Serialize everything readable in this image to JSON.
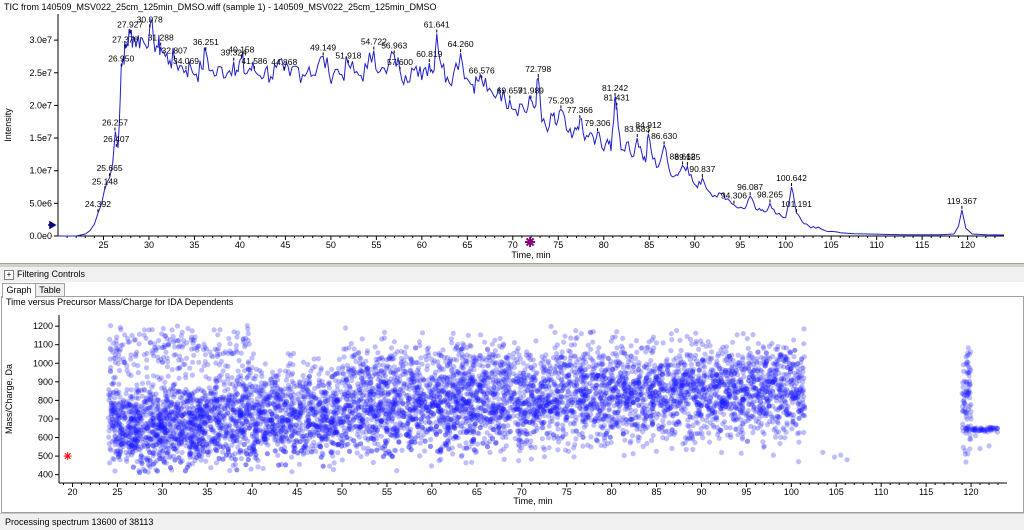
{
  "top_chart": {
    "title": "TIC from 140509_MSV022_25cm_125min_DMSO.wiff (sample 1) - 140509_MSV022_25cm_125min_DMSO"
  },
  "filter": {
    "toggle": "+",
    "label": "Filtering Controls"
  },
  "tabs": [
    {
      "label": "Graph"
    },
    {
      "label": "Table"
    }
  ],
  "bottom_chart": {
    "title": "Time versus Precursor Mass/Charge for IDA Dependents"
  },
  "status": {
    "text": "Processing spectrum 13600 of 38113"
  },
  "colors": {
    "trace": "#2020c8",
    "points": "#1a1aff",
    "marker": "#800080",
    "star": "#ff0000",
    "arrow": "#000080"
  },
  "chart_data": [
    {
      "type": "line",
      "xlabel": "Time, min",
      "ylabel": "Intensity",
      "xlim": [
        20,
        124
      ],
      "ylim": [
        0,
        34000000.0
      ],
      "x_ticks": [
        "25",
        "30",
        "35",
        "40",
        "45",
        "50",
        "55",
        "60",
        "65",
        "70",
        "75",
        "80",
        "85",
        "90",
        "95",
        "100",
        "105",
        "110",
        "115",
        "120"
      ],
      "y_ticks": [
        {
          "label": "0.0e0",
          "value": 0
        },
        {
          "label": "5.0e6",
          "value": 5000000
        },
        {
          "label": "1.0e7",
          "value": 10000000
        },
        {
          "label": "1.5e7",
          "value": 15000000
        },
        {
          "label": "2.0e7",
          "value": 20000000
        },
        {
          "label": "2.5e7",
          "value": 25000000
        },
        {
          "label": "3.0e7",
          "value": 30000000
        }
      ],
      "peak_labels": [
        {
          "label": "24.392",
          "x": 24.39,
          "y": 3500000
        },
        {
          "label": "25.148",
          "x": 25.15,
          "y": 7000000
        },
        {
          "label": "25.665",
          "x": 25.67,
          "y": 9000000
        },
        {
          "label": "26.407",
          "x": 26.41,
          "y": 13500000
        },
        {
          "label": "26.257",
          "x": 26.26,
          "y": 16000000
        },
        {
          "label": "26.950",
          "x": 26.95,
          "y": 25800000
        },
        {
          "label": "27.376",
          "x": 27.38,
          "y": 28700000
        },
        {
          "label": "27.927",
          "x": 27.93,
          "y": 31000000
        },
        {
          "label": "30.078",
          "x": 30.08,
          "y": 31800000
        },
        {
          "label": "31.288",
          "x": 31.29,
          "y": 29000000
        },
        {
          "label": "32.807",
          "x": 32.81,
          "y": 27000000
        },
        {
          "label": "34.069",
          "x": 34.07,
          "y": 25400000
        },
        {
          "label": "36.251",
          "x": 36.25,
          "y": 28300000
        },
        {
          "label": "39.324",
          "x": 39.32,
          "y": 26700000
        },
        {
          "label": "40.158",
          "x": 40.16,
          "y": 27200000
        },
        {
          "label": "41.586",
          "x": 41.59,
          "y": 25400000
        },
        {
          "label": "44.868",
          "x": 44.87,
          "y": 25300000
        },
        {
          "label": "49.149",
          "x": 49.15,
          "y": 27500000
        },
        {
          "label": "51.918",
          "x": 51.92,
          "y": 26300000
        },
        {
          "label": "54.722",
          "x": 54.72,
          "y": 28400000
        },
        {
          "label": "56.963",
          "x": 56.96,
          "y": 27800000
        },
        {
          "label": "57.600",
          "x": 57.6,
          "y": 25300000
        },
        {
          "label": "60.819",
          "x": 60.82,
          "y": 26500000
        },
        {
          "label": "61.641",
          "x": 61.64,
          "y": 31000000
        },
        {
          "label": "64.260",
          "x": 64.26,
          "y": 28000000
        },
        {
          "label": "66.576",
          "x": 66.58,
          "y": 24000000
        },
        {
          "label": "69.659",
          "x": 69.66,
          "y": 20900000
        },
        {
          "label": "72.798",
          "x": 72.8,
          "y": 24200000
        },
        {
          "label": "71.989",
          "x": 71.99,
          "y": 20900000
        },
        {
          "label": "75.293",
          "x": 75.29,
          "y": 19400000
        },
        {
          "label": "77.366",
          "x": 77.37,
          "y": 17900000
        },
        {
          "label": "79.306",
          "x": 79.31,
          "y": 15900000
        },
        {
          "label": "81.242",
          "x": 81.24,
          "y": 21300000
        },
        {
          "label": "81.431",
          "x": 81.43,
          "y": 19800000
        },
        {
          "label": "83.683",
          "x": 83.68,
          "y": 15000000
        },
        {
          "label": "84.912",
          "x": 84.91,
          "y": 15600000
        },
        {
          "label": "86.630",
          "x": 86.63,
          "y": 13900000
        },
        {
          "label": "88.662",
          "x": 88.66,
          "y": 10800000
        },
        {
          "label": "89.185",
          "x": 89.19,
          "y": 10700000
        },
        {
          "label": "90.837",
          "x": 90.84,
          "y": 8900000
        },
        {
          "label": "94.306",
          "x": 94.31,
          "y": 4800000
        },
        {
          "label": "96.087",
          "x": 96.09,
          "y": 6100000
        },
        {
          "label": "98.265",
          "x": 98.27,
          "y": 5000000
        },
        {
          "label": "100.642",
          "x": 100.64,
          "y": 7500000
        },
        {
          "label": "101.191",
          "x": 101.19,
          "y": 3500000
        },
        {
          "label": "119.367",
          "x": 119.37,
          "y": 4000000
        }
      ],
      "series": [
        {
          "x": [
            20,
            22,
            23,
            23.5,
            24,
            24.4,
            24.8,
            25.1,
            25.4,
            25.7,
            26.0,
            26.3,
            26.6,
            26.95,
            27.2,
            27.4,
            27.6,
            27.93,
            28.3,
            28.7,
            29.1,
            29.6,
            30.08,
            30.5,
            31.0,
            31.29,
            31.8,
            32.3,
            32.81,
            33.4,
            34.07,
            34.6,
            35.2,
            35.8,
            36.25,
            36.8,
            37.4,
            38.0,
            38.6,
            39.32,
            39.8,
            40.16,
            40.6,
            41.1,
            41.59,
            42.2,
            42.8,
            43.4,
            44.0,
            44.87,
            45.5,
            46.2,
            46.9,
            47.6,
            48.3,
            49.15,
            49.8,
            50.5,
            51.2,
            51.92,
            52.6,
            53.3,
            54.0,
            54.72,
            55.4,
            56.1,
            56.96,
            57.6,
            58.2,
            58.9,
            59.6,
            60.2,
            60.82,
            61.2,
            61.64,
            62.2,
            62.8,
            63.5,
            64.26,
            64.9,
            65.6,
            66.1,
            66.58,
            67.2,
            67.9,
            68.5,
            69.2,
            69.66,
            70.3,
            71.0,
            71.5,
            71.99,
            72.4,
            72.8,
            73.2,
            73.8,
            74.4,
            74.8,
            75.29,
            75.9,
            76.5,
            77.0,
            77.37,
            77.9,
            78.5,
            79.0,
            79.31,
            79.8,
            80.4,
            80.8,
            81.24,
            81.43,
            81.9,
            82.5,
            83.1,
            83.68,
            84.2,
            84.6,
            84.91,
            85.4,
            86.0,
            86.63,
            87.2,
            87.8,
            88.3,
            88.66,
            89.19,
            89.8,
            90.3,
            90.84,
            91.5,
            92.2,
            92.9,
            93.6,
            94.31,
            94.9,
            95.5,
            96.09,
            96.7,
            97.3,
            97.8,
            98.27,
            98.9,
            99.5,
            100.0,
            100.64,
            101.19,
            101.8,
            102.5,
            103.3,
            104.2,
            105.0,
            106.0,
            107.5,
            109.0,
            111.0,
            113.0,
            115.0,
            117.0,
            118.5,
            119.0,
            119.37,
            119.8,
            120.5,
            122.0,
            124.0
          ],
          "y": [
            0,
            0,
            300000,
            800000,
            1800000,
            3500000,
            5000000,
            7000000,
            8200000,
            9000000,
            11000000,
            16000000,
            13500000,
            25800000,
            27500000,
            28700000,
            29500000,
            31000000,
            30500000,
            29800000,
            30400000,
            29300000,
            31800000,
            30200000,
            28900000,
            29000000,
            27500000,
            26900000,
            27000000,
            26100000,
            25400000,
            25900000,
            24800000,
            25600000,
            28300000,
            25300000,
            24600000,
            25800000,
            24900000,
            26700000,
            25200000,
            27200000,
            24800000,
            25700000,
            25400000,
            24600000,
            25500000,
            24400000,
            25800000,
            25300000,
            24500000,
            26000000,
            24700000,
            25900000,
            24600000,
            27500000,
            24800000,
            25500000,
            24700000,
            26300000,
            25000000,
            24600000,
            25700000,
            28400000,
            25200000,
            24900000,
            27800000,
            25300000,
            24600000,
            25700000,
            24400000,
            25500000,
            26500000,
            25000000,
            31000000,
            25800000,
            24300000,
            25000000,
            28000000,
            24200000,
            23200000,
            23800000,
            24000000,
            22200000,
            21500000,
            22600000,
            20600000,
            20900000,
            19400000,
            20200000,
            18900000,
            20900000,
            19600000,
            24200000,
            17500000,
            16000000,
            18400000,
            17000000,
            19400000,
            16200000,
            15000000,
            16300000,
            17900000,
            14700000,
            15800000,
            14000000,
            15900000,
            13500000,
            14800000,
            13000000,
            21300000,
            19800000,
            13200000,
            14300000,
            12100000,
            15000000,
            12600000,
            11300000,
            15600000,
            11800000,
            10600000,
            13900000,
            10100000,
            9200000,
            9800000,
            10800000,
            10700000,
            8300000,
            7400000,
            8900000,
            6900000,
            6200000,
            6500000,
            5700000,
            4800000,
            4300000,
            4200000,
            6100000,
            4100000,
            3900000,
            3700000,
            5000000,
            3400000,
            3100000,
            2800000,
            7500000,
            3500000,
            2200000,
            1600000,
            1200000,
            900000,
            700000,
            500000,
            350000,
            300000,
            250000,
            200000,
            200000,
            200000,
            300000,
            1500000,
            4000000,
            1200000,
            300000,
            200000,
            150000
          ]
        }
      ]
    },
    {
      "type": "scatter",
      "xlabel": "Time, min",
      "ylabel": "Mass/Charge, Da",
      "xlim": [
        18.5,
        124
      ],
      "ylim": [
        355,
        1260
      ],
      "x_ticks": [
        "20",
        "25",
        "30",
        "35",
        "40",
        "45",
        "50",
        "55",
        "60",
        "65",
        "70",
        "75",
        "80",
        "85",
        "90",
        "95",
        "100",
        "105",
        "110",
        "115",
        "120"
      ],
      "y_ticks": [
        "400",
        "500",
        "600",
        "700",
        "800",
        "900",
        "1000",
        "1100",
        "1200"
      ],
      "annotation_marker": {
        "x": 18.8,
        "y": 500
      },
      "clusters": [
        {
          "x_range": [
            24,
            35
          ],
          "y_range": [
            360,
            1000
          ],
          "count": 900
        },
        {
          "x_range": [
            35,
            50
          ],
          "y_range": [
            380,
            1100
          ],
          "count": 1000
        },
        {
          "x_range": [
            50,
            65
          ],
          "y_range": [
            400,
            1240
          ],
          "count": 1100
        },
        {
          "x_range": [
            65,
            80
          ],
          "y_range": [
            420,
            1240
          ],
          "count": 1000
        },
        {
          "x_range": [
            80,
            95
          ],
          "y_range": [
            450,
            1240
          ],
          "count": 900
        },
        {
          "x_range": [
            95,
            101.5
          ],
          "y_range": [
            480,
            1240
          ],
          "count": 400
        },
        {
          "x_range": [
            24,
            40
          ],
          "y_range": [
            900,
            1250
          ],
          "count": 200
        },
        {
          "x_range": [
            119,
            123
          ],
          "y_range": [
            620,
            670
          ],
          "count": 60
        },
        {
          "x_range": [
            119,
            120
          ],
          "y_range": [
            400,
            1220
          ],
          "count": 80
        }
      ]
    }
  ]
}
